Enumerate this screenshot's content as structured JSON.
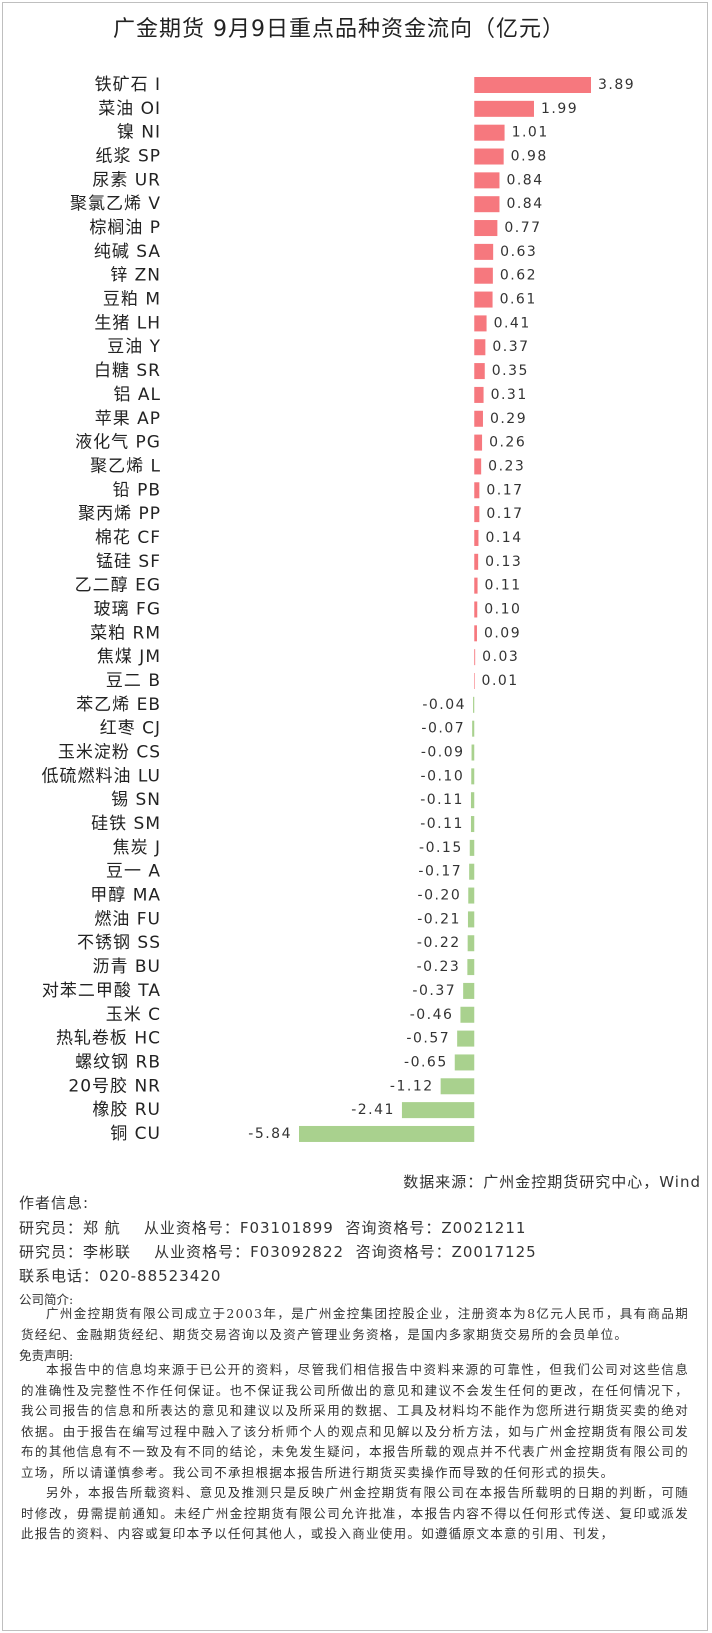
{
  "chart_data": {
    "type": "hbar",
    "title": "广金期货 9月9日重点品种资金流向（亿元）",
    "categories": [
      "铁矿石 I",
      "菜油 OI",
      "镍 NI",
      "纸浆 SP",
      "尿素 UR",
      "聚氯乙烯 V",
      "棕榈油 P",
      "纯碱 SA",
      "锌 ZN",
      "豆粕 M",
      "生猪 LH",
      "豆油 Y",
      "白糖 SR",
      "铝 AL",
      "苹果 AP",
      "液化气 PG",
      "聚乙烯 L",
      "铅 PB",
      "聚丙烯 PP",
      "棉花 CF",
      "锰硅 SF",
      "乙二醇 EG",
      "玻璃 FG",
      "菜粕 RM",
      "焦煤 JM",
      "豆二 B",
      "苯乙烯 EB",
      "红枣 CJ",
      "玉米淀粉 CS",
      "低硫燃料油 LU",
      "锡 SN",
      "硅铁 SM",
      "焦炭 J",
      "豆一 A",
      "甲醇 MA",
      "燃油 FU",
      "不锈钢 SS",
      "沥青 BU",
      "对苯二甲酸 TA",
      "玉米 C",
      "热轧卷板 HC",
      "螺纹钢 RB",
      "20号胶 NR",
      "橡胶 RU",
      "铜 CU"
    ],
    "values": [
      3.89,
      1.99,
      1.01,
      0.98,
      0.84,
      0.84,
      0.77,
      0.63,
      0.62,
      0.61,
      0.41,
      0.37,
      0.35,
      0.31,
      0.29,
      0.26,
      0.23,
      0.17,
      0.17,
      0.14,
      0.13,
      0.11,
      0.1,
      0.09,
      0.03,
      0.01,
      -0.04,
      -0.07,
      -0.09,
      -0.1,
      -0.11,
      -0.11,
      -0.15,
      -0.17,
      -0.2,
      -0.21,
      -0.22,
      -0.23,
      -0.37,
      -0.46,
      -0.57,
      -0.65,
      -1.12,
      -2.41,
      -5.84
    ],
    "value_labels": [
      "3.89",
      "1.99",
      "1.01",
      "0.98",
      "0.84",
      "0.84",
      "0.77",
      "0.63",
      "0.62",
      "0.61",
      "0.41",
      "0.37",
      "0.35",
      "0.31",
      "0.29",
      "0.26",
      "0.23",
      "0.17",
      "0.17",
      "0.14",
      "0.13",
      "0.11",
      "0.10",
      "0.09",
      "0.03",
      "0.01",
      "-0.04",
      "-0.07",
      "-0.09",
      "-0.10",
      "-0.11",
      "-0.11",
      "-0.15",
      "-0.17",
      "-0.20",
      "-0.21",
      "-0.22",
      "-0.23",
      "-0.37",
      "-0.46",
      "-0.57",
      "-0.65",
      "-1.12",
      "-2.41",
      "-5.84"
    ],
    "colors": {
      "positive": "#f6787e",
      "negative": "#a9d18e"
    },
    "source": "数据来源：广州金控期货研究中心，Wind"
  },
  "footer": {
    "author_heading": "作者信息:",
    "authors": [
      "研究员：郑 航    从业资格号：F03101899  咨询资格号：Z0021211",
      "研究员：李彬联    从业资格号：F03092822  咨询资格号：Z0017125"
    ],
    "phone": "联系电话：020-88523420",
    "intro_heading": "公司简介:",
    "intro": "广州金控期货有限公司成立于2003年，是广州金控集团控股企业，注册资本为8亿元人民币，具有商品期货经纪、金融期货经纪、期货交易咨询以及资产管理业务资格，是国内多家期货交易所的会员单位。",
    "disclaimer_heading": "免责声明:",
    "disclaimer": [
      "本报告中的信息均来源于已公开的资料，尽管我们相信报告中资料来源的可靠性，但我们公司对这些信息的准确性及完整性不作任何保证。也不保证我公司所做出的意见和建议不会发生任何的更改，在任何情况下，我公司报告的信息和所表达的意见和建议以及所采用的数据、工具及材料均不能作为您所进行期货买卖的绝对依据。由于报告在编写过程中融入了该分析师个人的观点和见解以及分析方法，如与广州金控期货有限公司发布的其他信息有不一致及有不同的结论，未免发生疑问，本报告所载的观点并不代表广州金控期货有限公司的立场，所以请谨慎参考。我公司不承担根据本报告所进行期货买卖操作而导致的任何形式的损失。",
      "另外，本报告所载资料、意见及推测只是反映广州金控期货有限公司在本报告所载明的日期的判断，可随时修改，毋需提前通知。未经广州金控期货有限公司允许批准，本报告内容不得以任何形式传送、复印或派发此报告的资料、内容或复印本予以任何其他人，或投入商业使用。如遵循原文本意的引用、刊发，"
    ]
  }
}
